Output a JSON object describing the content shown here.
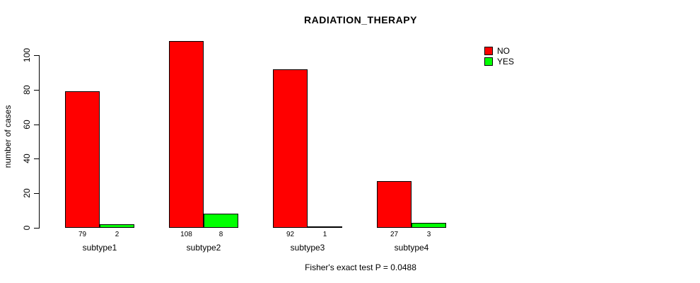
{
  "chart_data": {
    "type": "bar",
    "title": "RADIATION_THERAPY",
    "xlabel": "",
    "ylabel": "number of cases",
    "categories": [
      "subtype1",
      "subtype2",
      "subtype3",
      "subtype4"
    ],
    "series": [
      {
        "name": "NO",
        "color": "#ff0000",
        "values": [
          79,
          108,
          92,
          27
        ]
      },
      {
        "name": "YES",
        "color": "#00ff00",
        "values": [
          2,
          8,
          1,
          3
        ]
      }
    ],
    "ylim": [
      0,
      100
    ],
    "yticks": [
      0,
      20,
      40,
      60,
      80,
      100
    ],
    "grid": false,
    "legend_position": "top-right",
    "annotation": "Fisher's exact test P = 0.0488"
  }
}
